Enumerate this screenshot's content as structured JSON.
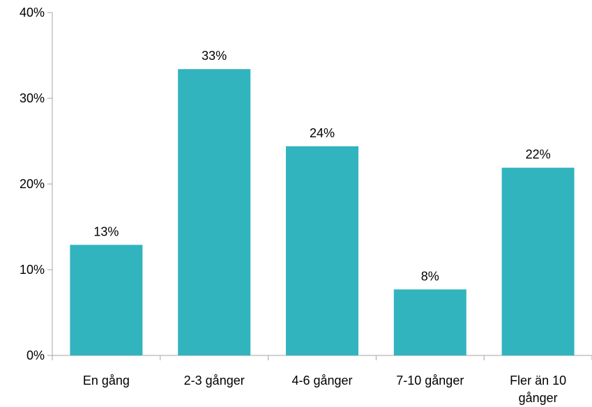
{
  "chart_data": {
    "type": "bar",
    "categories": [
      "En gång",
      "2-3 gånger",
      "4-6 gånger",
      "7-10 gånger",
      "Fler än 10 gånger"
    ],
    "category_label_lines": [
      [
        "En gång"
      ],
      [
        "2-3 gånger"
      ],
      [
        "4-6 gånger"
      ],
      [
        "7-10 gånger"
      ],
      [
        "Fler än 10",
        "gånger"
      ]
    ],
    "values": [
      12.9,
      33.4,
      24.4,
      7.7,
      21.9
    ],
    "data_labels": [
      "13%",
      "33%",
      "24%",
      "8%",
      "22%"
    ],
    "y_ticks": [
      0,
      10,
      20,
      30,
      40
    ],
    "y_tick_labels": [
      "0%",
      "10%",
      "20%",
      "30%",
      "40%"
    ],
    "ylim": [
      0,
      40
    ],
    "title": "",
    "xlabel": "",
    "ylabel": "",
    "grid": false,
    "legend": false,
    "bar_color": "#31B4BE",
    "axis_color": "#A6A6A6"
  }
}
